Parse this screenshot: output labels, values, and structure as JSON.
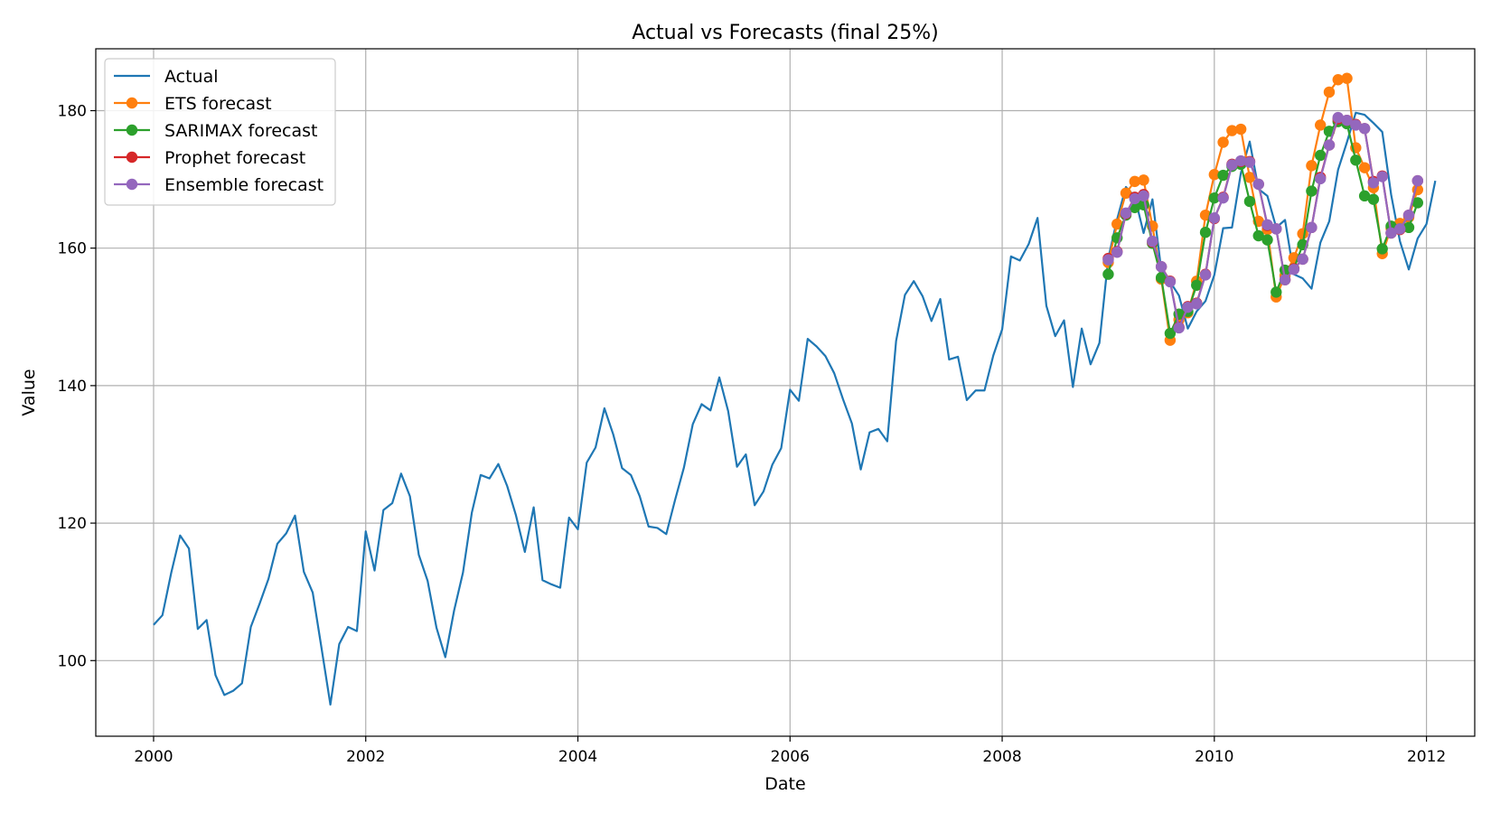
{
  "chart_data": {
    "type": "line",
    "title": "Actual vs Forecasts (final 25%)",
    "xlabel": "Date",
    "ylabel": "Value",
    "xlim": [
      "1999-06-15",
      "2012-06-15"
    ],
    "ylim": [
      89,
      189
    ],
    "x_ticks": [
      "2000",
      "2002",
      "2004",
      "2006",
      "2008",
      "2010",
      "2012"
    ],
    "y_ticks": [
      100,
      120,
      140,
      160,
      180
    ],
    "grid": true,
    "legend_position": "top-left",
    "series": [
      {
        "name": "Actual",
        "color": "#1f77b4",
        "marker": false,
        "start": "2000-01",
        "values": [
          105.2,
          106.6,
          112.8,
          118.2,
          116.3,
          104.6,
          105.9,
          97.9,
          95.0,
          95.6,
          96.7,
          104.9,
          108.3,
          111.9,
          117.0,
          118.5,
          121.1,
          112.9,
          109.9,
          101.8,
          93.6,
          102.4,
          104.9,
          104.3,
          118.8,
          113.1,
          121.9,
          122.9,
          127.2,
          123.9,
          115.4,
          111.6,
          104.8,
          100.5,
          107.3,
          112.8,
          121.5,
          127.0,
          126.5,
          128.6,
          125.4,
          121.1,
          115.8,
          122.3,
          111.7,
          111.1,
          110.6,
          120.8,
          119.1,
          128.8,
          131.0,
          136.7,
          132.9,
          128.0,
          127.0,
          123.9,
          119.5,
          119.3,
          118.4,
          123.4,
          128.1,
          134.4,
          137.3,
          136.4,
          141.2,
          136.3,
          128.2,
          130.0,
          122.6,
          124.6,
          128.5,
          130.9,
          139.4,
          137.8,
          146.8,
          145.7,
          144.3,
          141.8,
          138.0,
          134.5,
          127.8,
          133.2,
          133.7,
          131.9,
          146.5,
          153.2,
          155.2,
          153.0,
          149.4,
          152.6,
          143.8,
          144.2,
          137.9,
          139.3,
          139.3,
          144.4,
          148.2,
          158.8,
          158.2,
          160.6,
          164.4,
          151.6,
          147.2,
          149.5,
          139.8,
          148.3,
          143.1,
          146.2,
          158.5,
          164.2,
          168.9,
          167.5,
          162.2,
          167.1,
          156.8,
          155.1,
          153.1,
          148.3,
          150.8,
          152.3,
          156.1,
          162.9,
          163.0,
          170.9,
          175.5,
          168.6,
          167.6,
          163.0,
          164.1,
          156.2,
          155.6,
          154.1,
          160.8,
          163.9,
          171.4,
          175.4,
          179.7,
          179.4,
          178.2,
          176.9,
          167.8,
          161.0,
          156.9,
          161.4,
          163.5,
          169.8
        ]
      },
      {
        "name": "ETS forecast",
        "color": "#ff7f0e",
        "marker": true,
        "start": "2009-01",
        "values": [
          157.9,
          163.5,
          168.0,
          169.7,
          169.9,
          163.2,
          155.5,
          146.6,
          149.6,
          150.6,
          155.2,
          164.8,
          170.7,
          175.4,
          177.1,
          177.3,
          170.3,
          163.9,
          162.7,
          152.9,
          156.0,
          158.6,
          162.1,
          172.0,
          177.9,
          182.7,
          184.5,
          184.7,
          174.6,
          171.7,
          168.8,
          159.2,
          162.9,
          163.6,
          164.5,
          168.5
        ]
      },
      {
        "name": "SARIMAX forecast",
        "color": "#2ca02c",
        "marker": true,
        "start": "2009-01",
        "values": [
          156.2,
          161.5,
          164.8,
          165.9,
          166.3,
          160.7,
          155.7,
          147.6,
          150.4,
          150.8,
          154.6,
          162.3,
          167.3,
          170.6,
          171.9,
          172.2,
          166.8,
          161.8,
          161.2,
          153.6,
          156.8,
          157.0,
          160.5,
          168.3,
          173.5,
          177.0,
          178.4,
          178.1,
          172.8,
          167.6,
          167.1,
          159.9,
          163.2,
          162.8,
          163.0,
          166.6
        ]
      },
      {
        "name": "Prophet forecast",
        "color": "#d62728",
        "marker": true,
        "start": "2009-01",
        "values": [
          158.5,
          159.5,
          165.0,
          167.4,
          167.8,
          160.9,
          157.3,
          155.2,
          148.5,
          151.5,
          152.0,
          156.2,
          164.3,
          167.4,
          172.2,
          172.6,
          172.6,
          169.3,
          163.3,
          162.8,
          155.4,
          157.0,
          158.4,
          163.0,
          170.3,
          175.0,
          178.8,
          178.6,
          178.0,
          177.4,
          169.7,
          170.5,
          162.2,
          162.7,
          164.8,
          169.8
        ]
      },
      {
        "name": "Ensemble forecast",
        "color": "#9467bd",
        "marker": true,
        "start": "2009-01",
        "values": [
          158.3,
          159.4,
          165.1,
          167.2,
          167.6,
          161.0,
          157.3,
          155.1,
          148.4,
          151.4,
          151.9,
          156.1,
          164.4,
          167.3,
          172.1,
          172.7,
          172.5,
          169.3,
          163.4,
          162.8,
          155.4,
          156.9,
          158.4,
          163.0,
          170.1,
          175.0,
          179.0,
          178.6,
          177.9,
          177.4,
          169.5,
          170.4,
          162.2,
          162.8,
          164.8,
          169.8
        ]
      }
    ]
  }
}
